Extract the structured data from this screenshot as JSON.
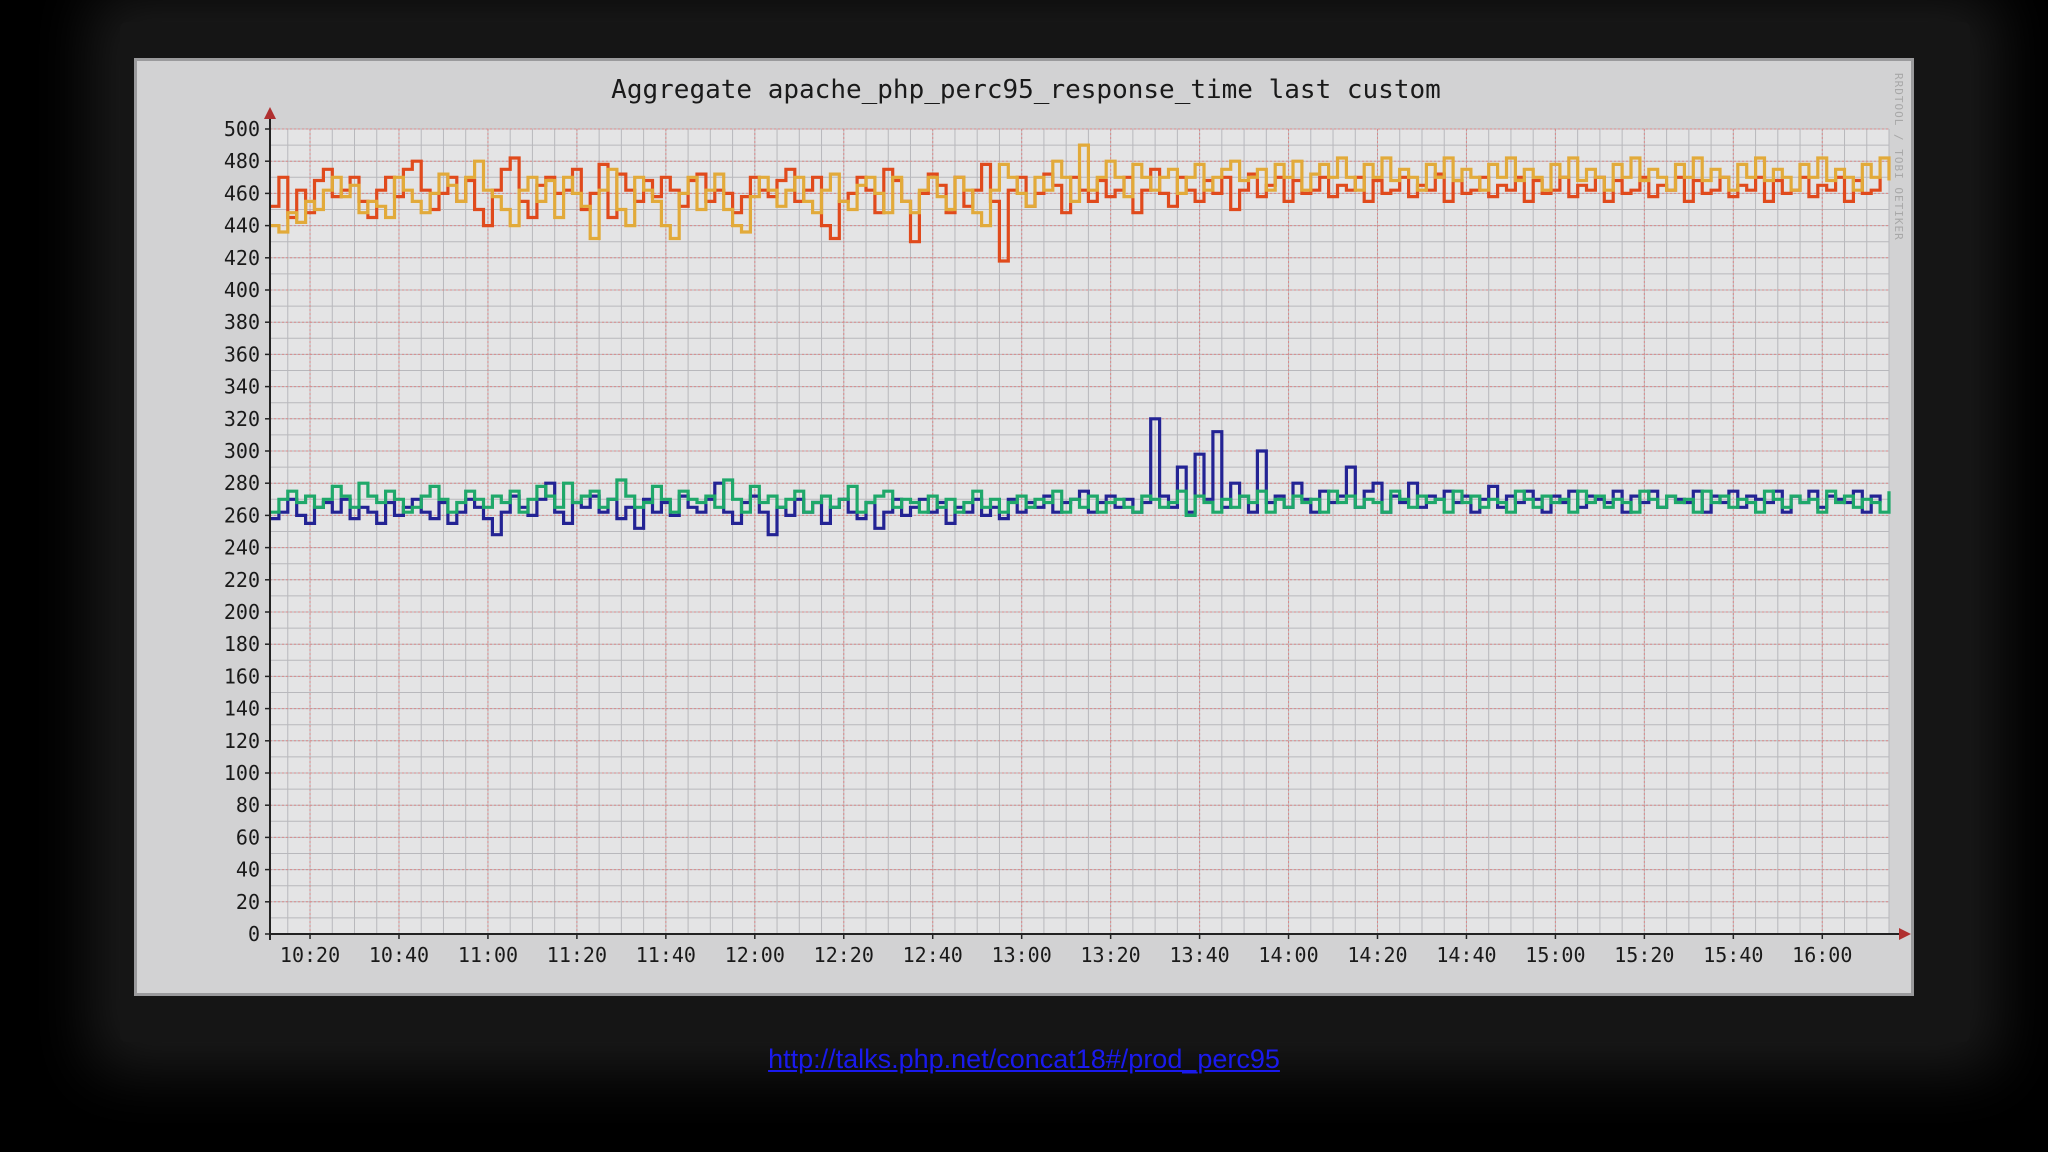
{
  "chart_data": {
    "type": "line",
    "title": "Aggregate apache_php_perc95_response_time last custom",
    "side_credit": "RRDTOOL / TOBI OETIKER",
    "xlabel": "",
    "ylabel": "",
    "ylim": [
      0,
      500
    ],
    "y_ticks": [
      0,
      20,
      40,
      60,
      80,
      100,
      120,
      140,
      160,
      180,
      200,
      220,
      240,
      260,
      280,
      300,
      320,
      340,
      360,
      380,
      400,
      420,
      440,
      460,
      480,
      500
    ],
    "x_range_minutes": [
      611,
      975
    ],
    "x_ticks": [
      {
        "label": "10:20",
        "minute": 620
      },
      {
        "label": "10:40",
        "minute": 640
      },
      {
        "label": "11:00",
        "minute": 660
      },
      {
        "label": "11:20",
        "minute": 680
      },
      {
        "label": "11:40",
        "minute": 700
      },
      {
        "label": "12:00",
        "minute": 720
      },
      {
        "label": "12:20",
        "minute": 740
      },
      {
        "label": "12:40",
        "minute": 760
      },
      {
        "label": "13:00",
        "minute": 780
      },
      {
        "label": "13:20",
        "minute": 800
      },
      {
        "label": "13:40",
        "minute": 820
      },
      {
        "label": "14:00",
        "minute": 840
      },
      {
        "label": "14:20",
        "minute": 860
      },
      {
        "label": "14:40",
        "minute": 880
      },
      {
        "label": "15:00",
        "minute": 900
      },
      {
        "label": "15:20",
        "minute": 920
      },
      {
        "label": "15:40",
        "minute": 940
      },
      {
        "label": "16:00",
        "minute": 960
      }
    ],
    "grid": true,
    "legend": "none",
    "series": [
      {
        "color": "#e04a1c",
        "x_start_minute": 611,
        "x_step_minutes": 2,
        "values": [
          452,
          470,
          445,
          462,
          448,
          468,
          475,
          458,
          462,
          470,
          455,
          445,
          462,
          470,
          458,
          475,
          480,
          462,
          450,
          460,
          470,
          455,
          468,
          450,
          440,
          462,
          475,
          482,
          455,
          445,
          465,
          470,
          460,
          462,
          475,
          450,
          460,
          478,
          445,
          472,
          462,
          455,
          468,
          458,
          470,
          462,
          452,
          468,
          472,
          455,
          462,
          460,
          448,
          458,
          470,
          462,
          458,
          468,
          475,
          455,
          462,
          470,
          440,
          432,
          455,
          460,
          470,
          462,
          448,
          475,
          468,
          455,
          430,
          460,
          472,
          465,
          448,
          470,
          452,
          462,
          478,
          455,
          418,
          462,
          470,
          452,
          460,
          472,
          465,
          448,
          470,
          462,
          455,
          468,
          458,
          462,
          470,
          448,
          462,
          475,
          460,
          452,
          470,
          462,
          455,
          468,
          460,
          470,
          450,
          462,
          472,
          458,
          465,
          470,
          455,
          468,
          460,
          462,
          470,
          458,
          465,
          462,
          470,
          455,
          468,
          460,
          462,
          470,
          458,
          465,
          462,
          472,
          455,
          468,
          460,
          462,
          470,
          458,
          465,
          462,
          470,
          455,
          468,
          460,
          462,
          470,
          458,
          465,
          462,
          470,
          455,
          468,
          460,
          462,
          470,
          458,
          465,
          462,
          470,
          455,
          468,
          460,
          462,
          470,
          458,
          465,
          462,
          470,
          455,
          468,
          460,
          462,
          470,
          458,
          465,
          462,
          470,
          455,
          468,
          460,
          462,
          470
        ]
      },
      {
        "color": "#e2aa3a",
        "x_start_minute": 611,
        "x_step_minutes": 2,
        "values": [
          440,
          436,
          448,
          442,
          455,
          450,
          462,
          470,
          458,
          465,
          448,
          455,
          452,
          445,
          470,
          462,
          455,
          448,
          460,
          472,
          465,
          455,
          470,
          480,
          462,
          458,
          450,
          440,
          462,
          470,
          455,
          468,
          445,
          470,
          460,
          452,
          432,
          462,
          475,
          450,
          440,
          470,
          462,
          455,
          440,
          432,
          460,
          470,
          450,
          462,
          472,
          450,
          440,
          436,
          458,
          470,
          462,
          452,
          462,
          470,
          455,
          448,
          462,
          472,
          455,
          450,
          465,
          470,
          460,
          448,
          470,
          455,
          448,
          462,
          470,
          458,
          450,
          470,
          462,
          448,
          440,
          462,
          478,
          470,
          460,
          452,
          470,
          462,
          480,
          470,
          455,
          490,
          462,
          470,
          480,
          470,
          458,
          478,
          470,
          462,
          470,
          475,
          460,
          470,
          478,
          462,
          470,
          475,
          480,
          468,
          470,
          475,
          462,
          478,
          470,
          480,
          462,
          472,
          478,
          470,
          482,
          470,
          462,
          478,
          470,
          482,
          468,
          475,
          470,
          462,
          478,
          470,
          482,
          468,
          475,
          470,
          462,
          478,
          470,
          482,
          468,
          475,
          470,
          462,
          478,
          470,
          482,
          468,
          475,
          470,
          462,
          478,
          470,
          482,
          468,
          475,
          470,
          462,
          478,
          470,
          482,
          468,
          475,
          470,
          462,
          478,
          470,
          482,
          468,
          475,
          470,
          462,
          478,
          470,
          482,
          468,
          475,
          470,
          462,
          478,
          470,
          482,
          468
        ]
      },
      {
        "color": "#232394",
        "x_start_minute": 611,
        "x_step_minutes": 2,
        "values": [
          258,
          262,
          270,
          260,
          255,
          265,
          268,
          262,
          270,
          258,
          265,
          262,
          255,
          268,
          260,
          265,
          270,
          262,
          258,
          268,
          255,
          262,
          270,
          265,
          258,
          248,
          262,
          272,
          265,
          260,
          270,
          280,
          262,
          255,
          268,
          265,
          272,
          262,
          270,
          258,
          265,
          252,
          270,
          262,
          268,
          260,
          272,
          265,
          262,
          270,
          280,
          262,
          255,
          268,
          272,
          262,
          248,
          265,
          260,
          270,
          262,
          268,
          255,
          265,
          270,
          262,
          258,
          268,
          252,
          262,
          270,
          260,
          265,
          270,
          262,
          268,
          255,
          265,
          262,
          270,
          260,
          265,
          258,
          270,
          262,
          268,
          265,
          272,
          262,
          268,
          270,
          275,
          262,
          268,
          272,
          265,
          270,
          262,
          268,
          320,
          272,
          265,
          290,
          262,
          298,
          270,
          312,
          265,
          280,
          272,
          262,
          300,
          268,
          272,
          265,
          280,
          270,
          262,
          275,
          268,
          272,
          290,
          265,
          275,
          280,
          262,
          272,
          268,
          280,
          265,
          272,
          270,
          275,
          268,
          272,
          262,
          270,
          278,
          265,
          272,
          268,
          275,
          270,
          262,
          272,
          268,
          275,
          265,
          272,
          270,
          268,
          275,
          262,
          272,
          268,
          275,
          265,
          272,
          270,
          268,
          275,
          262,
          272,
          268,
          275,
          265,
          272,
          270,
          268,
          275,
          262,
          272,
          268,
          275,
          265,
          272,
          270,
          268,
          275,
          262,
          272,
          268
        ]
      },
      {
        "color": "#1fa86a",
        "x_start_minute": 611,
        "x_step_minutes": 2,
        "values": [
          262,
          270,
          275,
          268,
          272,
          265,
          270,
          278,
          272,
          265,
          280,
          272,
          268,
          275,
          270,
          262,
          265,
          272,
          278,
          270,
          262,
          268,
          275,
          270,
          265,
          272,
          268,
          275,
          262,
          270,
          278,
          272,
          265,
          280,
          268,
          272,
          275,
          265,
          270,
          282,
          272,
          265,
          268,
          278,
          270,
          262,
          275,
          270,
          268,
          272,
          265,
          282,
          270,
          262,
          278,
          268,
          272,
          265,
          270,
          275,
          262,
          268,
          272,
          265,
          270,
          278,
          262,
          268,
          272,
          275,
          265,
          270,
          268,
          262,
          272,
          265,
          270,
          262,
          268,
          275,
          265,
          270,
          262,
          268,
          272,
          265,
          270,
          268,
          275,
          262,
          270,
          265,
          272,
          262,
          268,
          270,
          265,
          262,
          272,
          270,
          265,
          268,
          275,
          260,
          272,
          268,
          262,
          270,
          265,
          272,
          268,
          275,
          262,
          270,
          265,
          272,
          268,
          270,
          262,
          275,
          268,
          272,
          265,
          270,
          268,
          262,
          275,
          270,
          265,
          272,
          268,
          270,
          262,
          275,
          268,
          272,
          265,
          270,
          268,
          262,
          275,
          270,
          265,
          272,
          268,
          270,
          262,
          275,
          268,
          272,
          265,
          270,
          268,
          262,
          275,
          270,
          265,
          272,
          268,
          270,
          262,
          275,
          268,
          272,
          265,
          270,
          268,
          262,
          275,
          270,
          265,
          272,
          268,
          270,
          262,
          275,
          268,
          272,
          265,
          270,
          268,
          262,
          275
        ]
      }
    ]
  },
  "footer": {
    "link_text": "http://talks.php.net/concat18#/prod_perc95"
  }
}
